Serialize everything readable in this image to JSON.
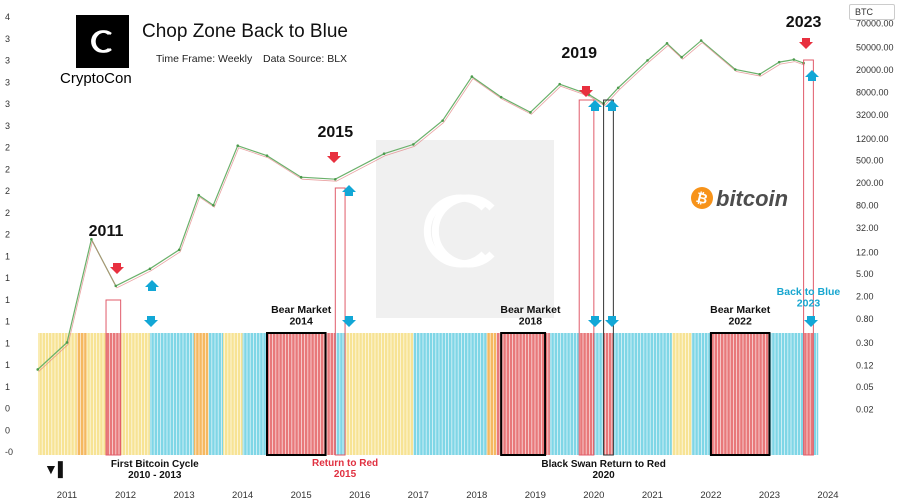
{
  "header": {
    "title": "Chop Zone Back to Blue",
    "time_frame": "Time Frame: Weekly",
    "data_source": "Data Source: BLX",
    "brand": "CryptoCon",
    "currency_badge": "BTC"
  },
  "logo_text": "bitcoin",
  "chart_data": {
    "type": "line",
    "y_scale": "log",
    "x": [
      "2010-07",
      "2011-01",
      "2011-06",
      "2011-11",
      "2012-06",
      "2012-12",
      "2013-04",
      "2013-07",
      "2013-12",
      "2014-06",
      "2015-01",
      "2015-08",
      "2016-06",
      "2016-12",
      "2017-06",
      "2017-12",
      "2018-06",
      "2018-12",
      "2019-06",
      "2019-12",
      "2020-03",
      "2020-06",
      "2020-12",
      "2021-04",
      "2021-07",
      "2021-11",
      "2022-06",
      "2022-11",
      "2023-03",
      "2023-06",
      "2023-08"
    ],
    "series": [
      {
        "values": [
          0.1,
          0.3,
          20,
          3,
          6,
          13,
          120,
          80,
          900,
          600,
          250,
          230,
          650,
          950,
          2500,
          15000,
          6500,
          3500,
          11000,
          7200,
          5000,
          9500,
          29000,
          58000,
          33000,
          65000,
          20000,
          16500,
          27000,
          30000,
          26000
        ]
      }
    ],
    "y_ticks": [
      "70000.00",
      "50000.00",
      "20000.00",
      "8000.00",
      "3200.00",
      "1200.00",
      "500.00",
      "200.00",
      "80.00",
      "32.00",
      "12.00",
      "5.00",
      "2.00",
      "0.80",
      "0.30",
      "0.12",
      "0.05",
      "0.02"
    ],
    "left_axis_ticks": [
      "4",
      "3",
      "3",
      "3",
      "3",
      "3",
      "2",
      "2",
      "2",
      "2",
      "2",
      "1",
      "1",
      "1",
      "1",
      "1",
      "1",
      "1",
      "0",
      "0",
      "-0"
    ],
    "x_ticks": [
      "2011",
      "2012",
      "2013",
      "2014",
      "2015",
      "2016",
      "2017",
      "2018",
      "2019",
      "2020",
      "2021",
      "2022",
      "2023",
      "2024"
    ],
    "chop_zone": {
      "colors": {
        "blue": "#7fd6e6",
        "yellow": "#f7e394",
        "orange": "#f5b860",
        "red": "#e8787a",
        "pale": "#fdf3cf"
      },
      "segments": [
        [
          "2010-07",
          "2011-03",
          "yellow"
        ],
        [
          "2011-03",
          "2011-05",
          "orange"
        ],
        [
          "2011-05",
          "2011-09",
          "yellow"
        ],
        [
          "2011-09",
          "2011-12",
          "red"
        ],
        [
          "2011-12",
          "2012-06",
          "yellow"
        ],
        [
          "2012-06",
          "2013-03",
          "blue"
        ],
        [
          "2013-03",
          "2013-06",
          "orange"
        ],
        [
          "2013-06",
          "2013-09",
          "blue"
        ],
        [
          "2013-09",
          "2014-01",
          "yellow"
        ],
        [
          "2014-01",
          "2014-06",
          "blue"
        ],
        [
          "2014-06",
          "2015-08",
          "red"
        ],
        [
          "2015-08",
          "2015-10",
          "blue"
        ],
        [
          "2015-10",
          "2016-12",
          "yellow"
        ],
        [
          "2016-12",
          "2018-03",
          "blue"
        ],
        [
          "2018-03",
          "2018-05",
          "orange"
        ],
        [
          "2018-05",
          "2019-04",
          "red"
        ],
        [
          "2019-04",
          "2019-10",
          "blue"
        ],
        [
          "2019-10",
          "2020-01",
          "red"
        ],
        [
          "2020-01",
          "2020-03",
          "blue"
        ],
        [
          "2020-03",
          "2020-05",
          "red"
        ],
        [
          "2020-05",
          "2021-05",
          "blue"
        ],
        [
          "2021-05",
          "2021-09",
          "yellow"
        ],
        [
          "2021-09",
          "2022-01",
          "blue"
        ],
        [
          "2022-01",
          "2023-01",
          "red"
        ],
        [
          "2023-01",
          "2023-08",
          "blue"
        ],
        [
          "2023-08",
          "2023-10",
          "red"
        ],
        [
          "2023-10",
          "2023-11",
          "blue"
        ]
      ]
    },
    "annotations": [
      {
        "text": "2011",
        "kind": "year",
        "x": "2011-09"
      },
      {
        "text": "2015",
        "kind": "year",
        "x": "2015-08"
      },
      {
        "text": "2019",
        "kind": "year",
        "x": "2019-10"
      },
      {
        "text": "2023",
        "kind": "year",
        "x": "2023-08"
      },
      {
        "text": "Bear Market\n2014",
        "kind": "label",
        "x": "2015-01"
      },
      {
        "text": "Bear Market\n2018",
        "kind": "label",
        "x": "2018-12"
      },
      {
        "text": "Bear Market\n2022",
        "kind": "label",
        "x": "2022-07"
      },
      {
        "text": "Back to Blue\n2023",
        "kind": "label-blue",
        "x": "2023-09"
      },
      {
        "text": "First Bitcoin Cycle\n2010 - 2013",
        "kind": "bottom",
        "x": "2012-07"
      },
      {
        "text": "Return to Red\n2015",
        "kind": "bottom-red",
        "x": "2015-10"
      },
      {
        "text": "Black Swan Return to Red\n2020",
        "kind": "bottom",
        "x": "2020-03"
      }
    ]
  }
}
